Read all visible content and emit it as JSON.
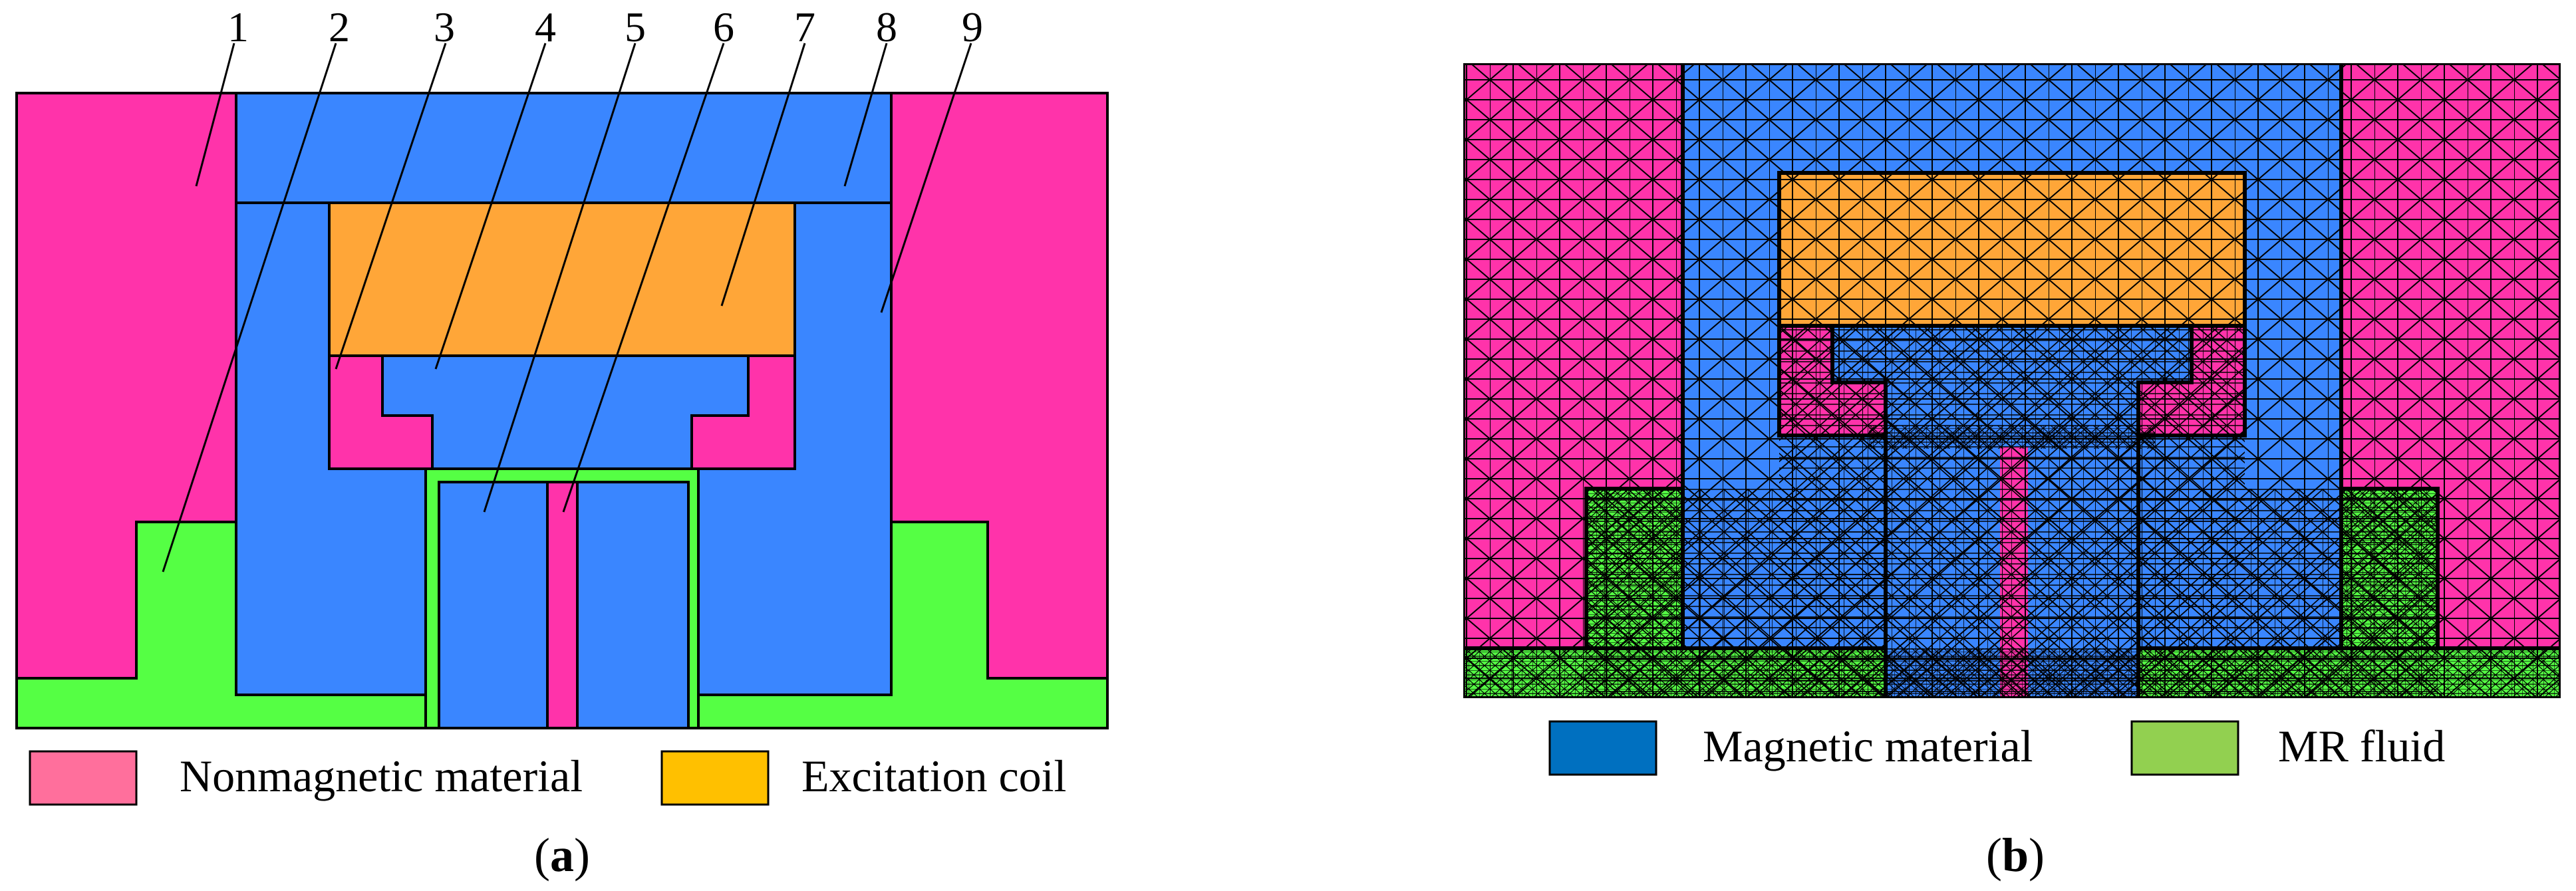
{
  "colors": {
    "nonmagnetic": "#ff33aa",
    "magnetic": "#3a86ff",
    "coil": "#ffa638",
    "mr_fluid": "#55ff44",
    "legend_nonmagnetic": "#ff6f9c",
    "legend_coil": "#ffc000",
    "legend_magnetic": "#0070c0",
    "legend_mr_fluid": "#92d050",
    "mesh_line": "#000000"
  },
  "panel_a": {
    "part_numbers": [
      "1",
      "2",
      "3",
      "4",
      "5",
      "6",
      "7",
      "8",
      "9"
    ],
    "legend": [
      {
        "label": "Nonmagnetic material"
      },
      {
        "label": "Excitation coil"
      }
    ],
    "caption": {
      "open": "(",
      "letter": "a",
      "close": ")"
    }
  },
  "panel_b": {
    "legend": [
      {
        "label": "Magnetic material"
      },
      {
        "label": "MR fluid"
      }
    ],
    "caption": {
      "open": "(",
      "letter": "b",
      "close": ")"
    }
  }
}
